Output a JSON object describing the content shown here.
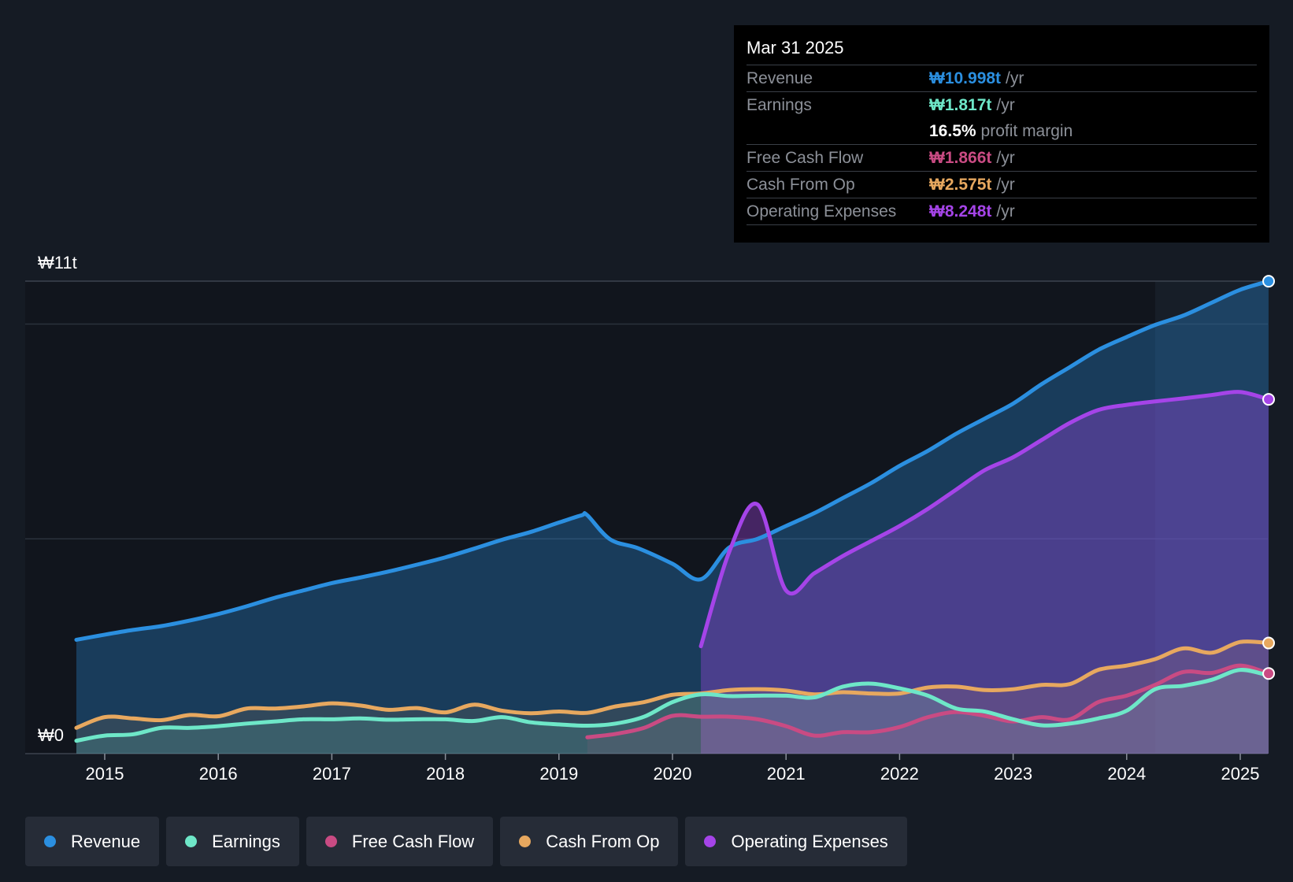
{
  "chart_data": {
    "type": "area",
    "currency": "₩",
    "ylim": [
      0,
      11
    ],
    "y_unit": "trillion",
    "y_tick_labels": {
      "top": "₩11t",
      "bottom": "₩0"
    },
    "x_ticks": [
      "2015",
      "2016",
      "2017",
      "2018",
      "2019",
      "2020",
      "2021",
      "2022",
      "2023",
      "2024",
      "2025"
    ],
    "series": [
      {
        "name": "Revenue",
        "color": "#2b8fe0",
        "points": [
          [
            2014.75,
            2.65
          ],
          [
            2015.0,
            2.77
          ],
          [
            2015.25,
            2.88
          ],
          [
            2015.5,
            2.97
          ],
          [
            2015.75,
            3.1
          ],
          [
            2016.0,
            3.25
          ],
          [
            2016.25,
            3.43
          ],
          [
            2016.5,
            3.63
          ],
          [
            2016.75,
            3.8
          ],
          [
            2017.0,
            3.97
          ],
          [
            2017.25,
            4.1
          ],
          [
            2017.5,
            4.24
          ],
          [
            2017.75,
            4.4
          ],
          [
            2018.0,
            4.57
          ],
          [
            2018.25,
            4.77
          ],
          [
            2018.5,
            4.98
          ],
          [
            2018.75,
            5.16
          ],
          [
            2019.0,
            5.38
          ],
          [
            2019.2,
            5.55
          ],
          [
            2019.25,
            5.55
          ],
          [
            2019.45,
            4.99
          ],
          [
            2019.7,
            4.78
          ],
          [
            2020.0,
            4.42
          ],
          [
            2020.25,
            4.06
          ],
          [
            2020.5,
            4.8
          ],
          [
            2020.75,
            5.0
          ],
          [
            2021.0,
            5.3
          ],
          [
            2021.25,
            5.6
          ],
          [
            2021.5,
            5.95
          ],
          [
            2021.75,
            6.3
          ],
          [
            2022.0,
            6.7
          ],
          [
            2022.25,
            7.05
          ],
          [
            2022.5,
            7.45
          ],
          [
            2022.75,
            7.8
          ],
          [
            2023.0,
            8.15
          ],
          [
            2023.25,
            8.6
          ],
          [
            2023.5,
            9.0
          ],
          [
            2023.75,
            9.4
          ],
          [
            2024.0,
            9.7
          ],
          [
            2024.25,
            9.98
          ],
          [
            2024.5,
            10.2
          ],
          [
            2024.75,
            10.5
          ],
          [
            2025.0,
            10.8
          ],
          [
            2025.25,
            10.998
          ]
        ]
      },
      {
        "name": "Earnings",
        "color": "#6ee7c8",
        "points": [
          [
            2014.75,
            0.3
          ],
          [
            2015.0,
            0.42
          ],
          [
            2015.25,
            0.45
          ],
          [
            2015.5,
            0.6
          ],
          [
            2015.75,
            0.6
          ],
          [
            2016.0,
            0.64
          ],
          [
            2016.25,
            0.7
          ],
          [
            2016.5,
            0.75
          ],
          [
            2016.75,
            0.8
          ],
          [
            2017.0,
            0.8
          ],
          [
            2017.25,
            0.82
          ],
          [
            2017.5,
            0.79
          ],
          [
            2017.75,
            0.8
          ],
          [
            2018.0,
            0.8
          ],
          [
            2018.25,
            0.76
          ],
          [
            2018.5,
            0.85
          ],
          [
            2018.75,
            0.73
          ],
          [
            2019.0,
            0.68
          ],
          [
            2019.25,
            0.65
          ],
          [
            2019.5,
            0.7
          ],
          [
            2019.75,
            0.86
          ],
          [
            2020.0,
            1.2
          ],
          [
            2020.25,
            1.38
          ],
          [
            2020.5,
            1.34
          ],
          [
            2020.75,
            1.35
          ],
          [
            2021.0,
            1.35
          ],
          [
            2021.25,
            1.31
          ],
          [
            2021.5,
            1.56
          ],
          [
            2021.75,
            1.63
          ],
          [
            2022.0,
            1.52
          ],
          [
            2022.25,
            1.35
          ],
          [
            2022.5,
            1.05
          ],
          [
            2022.75,
            0.98
          ],
          [
            2023.0,
            0.8
          ],
          [
            2023.25,
            0.66
          ],
          [
            2023.5,
            0.7
          ],
          [
            2023.75,
            0.82
          ],
          [
            2024.0,
            1.0
          ],
          [
            2024.25,
            1.5
          ],
          [
            2024.5,
            1.58
          ],
          [
            2024.75,
            1.72
          ],
          [
            2025.0,
            1.95
          ],
          [
            2025.25,
            1.817
          ]
        ]
      },
      {
        "name": "Free Cash Flow",
        "color": "#c94b83",
        "points": [
          [
            2019.25,
            0.38
          ],
          [
            2019.5,
            0.46
          ],
          [
            2019.75,
            0.6
          ],
          [
            2020.0,
            0.88
          ],
          [
            2020.25,
            0.86
          ],
          [
            2020.5,
            0.86
          ],
          [
            2020.75,
            0.8
          ],
          [
            2021.0,
            0.64
          ],
          [
            2021.25,
            0.42
          ],
          [
            2021.5,
            0.5
          ],
          [
            2021.75,
            0.5
          ],
          [
            2022.0,
            0.62
          ],
          [
            2022.25,
            0.85
          ],
          [
            2022.5,
            0.97
          ],
          [
            2022.75,
            0.88
          ],
          [
            2023.0,
            0.75
          ],
          [
            2023.25,
            0.85
          ],
          [
            2023.5,
            0.8
          ],
          [
            2023.75,
            1.2
          ],
          [
            2024.0,
            1.35
          ],
          [
            2024.25,
            1.6
          ],
          [
            2024.5,
            1.9
          ],
          [
            2024.75,
            1.88
          ],
          [
            2025.0,
            2.05
          ],
          [
            2025.25,
            1.866
          ]
        ]
      },
      {
        "name": "Cash From Op",
        "color": "#e7a85f",
        "points": [
          [
            2014.75,
            0.6
          ],
          [
            2015.0,
            0.85
          ],
          [
            2015.25,
            0.82
          ],
          [
            2015.5,
            0.78
          ],
          [
            2015.75,
            0.9
          ],
          [
            2016.0,
            0.87
          ],
          [
            2016.25,
            1.05
          ],
          [
            2016.5,
            1.05
          ],
          [
            2016.75,
            1.1
          ],
          [
            2017.0,
            1.17
          ],
          [
            2017.25,
            1.12
          ],
          [
            2017.5,
            1.02
          ],
          [
            2017.75,
            1.06
          ],
          [
            2018.0,
            0.96
          ],
          [
            2018.25,
            1.14
          ],
          [
            2018.5,
            1.0
          ],
          [
            2018.75,
            0.94
          ],
          [
            2019.0,
            0.98
          ],
          [
            2019.25,
            0.95
          ],
          [
            2019.5,
            1.1
          ],
          [
            2019.75,
            1.2
          ],
          [
            2020.0,
            1.37
          ],
          [
            2020.25,
            1.4
          ],
          [
            2020.5,
            1.48
          ],
          [
            2020.75,
            1.5
          ],
          [
            2021.0,
            1.47
          ],
          [
            2021.25,
            1.38
          ],
          [
            2021.5,
            1.43
          ],
          [
            2021.75,
            1.4
          ],
          [
            2022.0,
            1.4
          ],
          [
            2022.25,
            1.54
          ],
          [
            2022.5,
            1.56
          ],
          [
            2022.75,
            1.48
          ],
          [
            2023.0,
            1.5
          ],
          [
            2023.25,
            1.6
          ],
          [
            2023.5,
            1.62
          ],
          [
            2023.75,
            1.95
          ],
          [
            2024.0,
            2.05
          ],
          [
            2024.25,
            2.2
          ],
          [
            2024.5,
            2.45
          ],
          [
            2024.75,
            2.35
          ],
          [
            2025.0,
            2.6
          ],
          [
            2025.25,
            2.575
          ]
        ]
      },
      {
        "name": "Operating Expenses",
        "color": "#a544e8",
        "points": [
          [
            2020.25,
            2.5
          ],
          [
            2020.5,
            4.7
          ],
          [
            2020.75,
            5.8
          ],
          [
            2021.0,
            3.8
          ],
          [
            2021.25,
            4.2
          ],
          [
            2021.5,
            4.6
          ],
          [
            2021.75,
            4.95
          ],
          [
            2022.0,
            5.3
          ],
          [
            2022.25,
            5.7
          ],
          [
            2022.5,
            6.15
          ],
          [
            2022.75,
            6.6
          ],
          [
            2023.0,
            6.9
          ],
          [
            2023.25,
            7.3
          ],
          [
            2023.5,
            7.7
          ],
          [
            2023.75,
            8.0
          ],
          [
            2024.0,
            8.12
          ],
          [
            2024.25,
            8.2
          ],
          [
            2024.5,
            8.27
          ],
          [
            2024.75,
            8.35
          ],
          [
            2025.0,
            8.42
          ],
          [
            2025.25,
            8.248
          ]
        ]
      }
    ]
  },
  "tooltip": {
    "date": "Mar 31 2025",
    "rows": [
      {
        "label": "Revenue",
        "value": "₩10.998t",
        "unit": "/yr",
        "color": "#2b8fe0"
      },
      {
        "label": "Earnings",
        "value": "₩1.817t",
        "unit": "/yr",
        "color": "#6ee7c8"
      },
      {
        "label": "",
        "value": "16.5%",
        "unit": "profit margin",
        "color": "#ffffff"
      },
      {
        "label": "Free Cash Flow",
        "value": "₩1.866t",
        "unit": "/yr",
        "color": "#c94b83"
      },
      {
        "label": "Cash From Op",
        "value": "₩2.575t",
        "unit": "/yr",
        "color": "#e7a85f"
      },
      {
        "label": "Operating Expenses",
        "value": "₩8.248t",
        "unit": "/yr",
        "color": "#a544e8"
      }
    ]
  },
  "legend": [
    {
      "label": "Revenue",
      "color": "#2b8fe0"
    },
    {
      "label": "Earnings",
      "color": "#6ee7c8"
    },
    {
      "label": "Free Cash Flow",
      "color": "#c94b83"
    },
    {
      "label": "Cash From Op",
      "color": "#e7a85f"
    },
    {
      "label": "Operating Expenses",
      "color": "#a544e8"
    }
  ]
}
